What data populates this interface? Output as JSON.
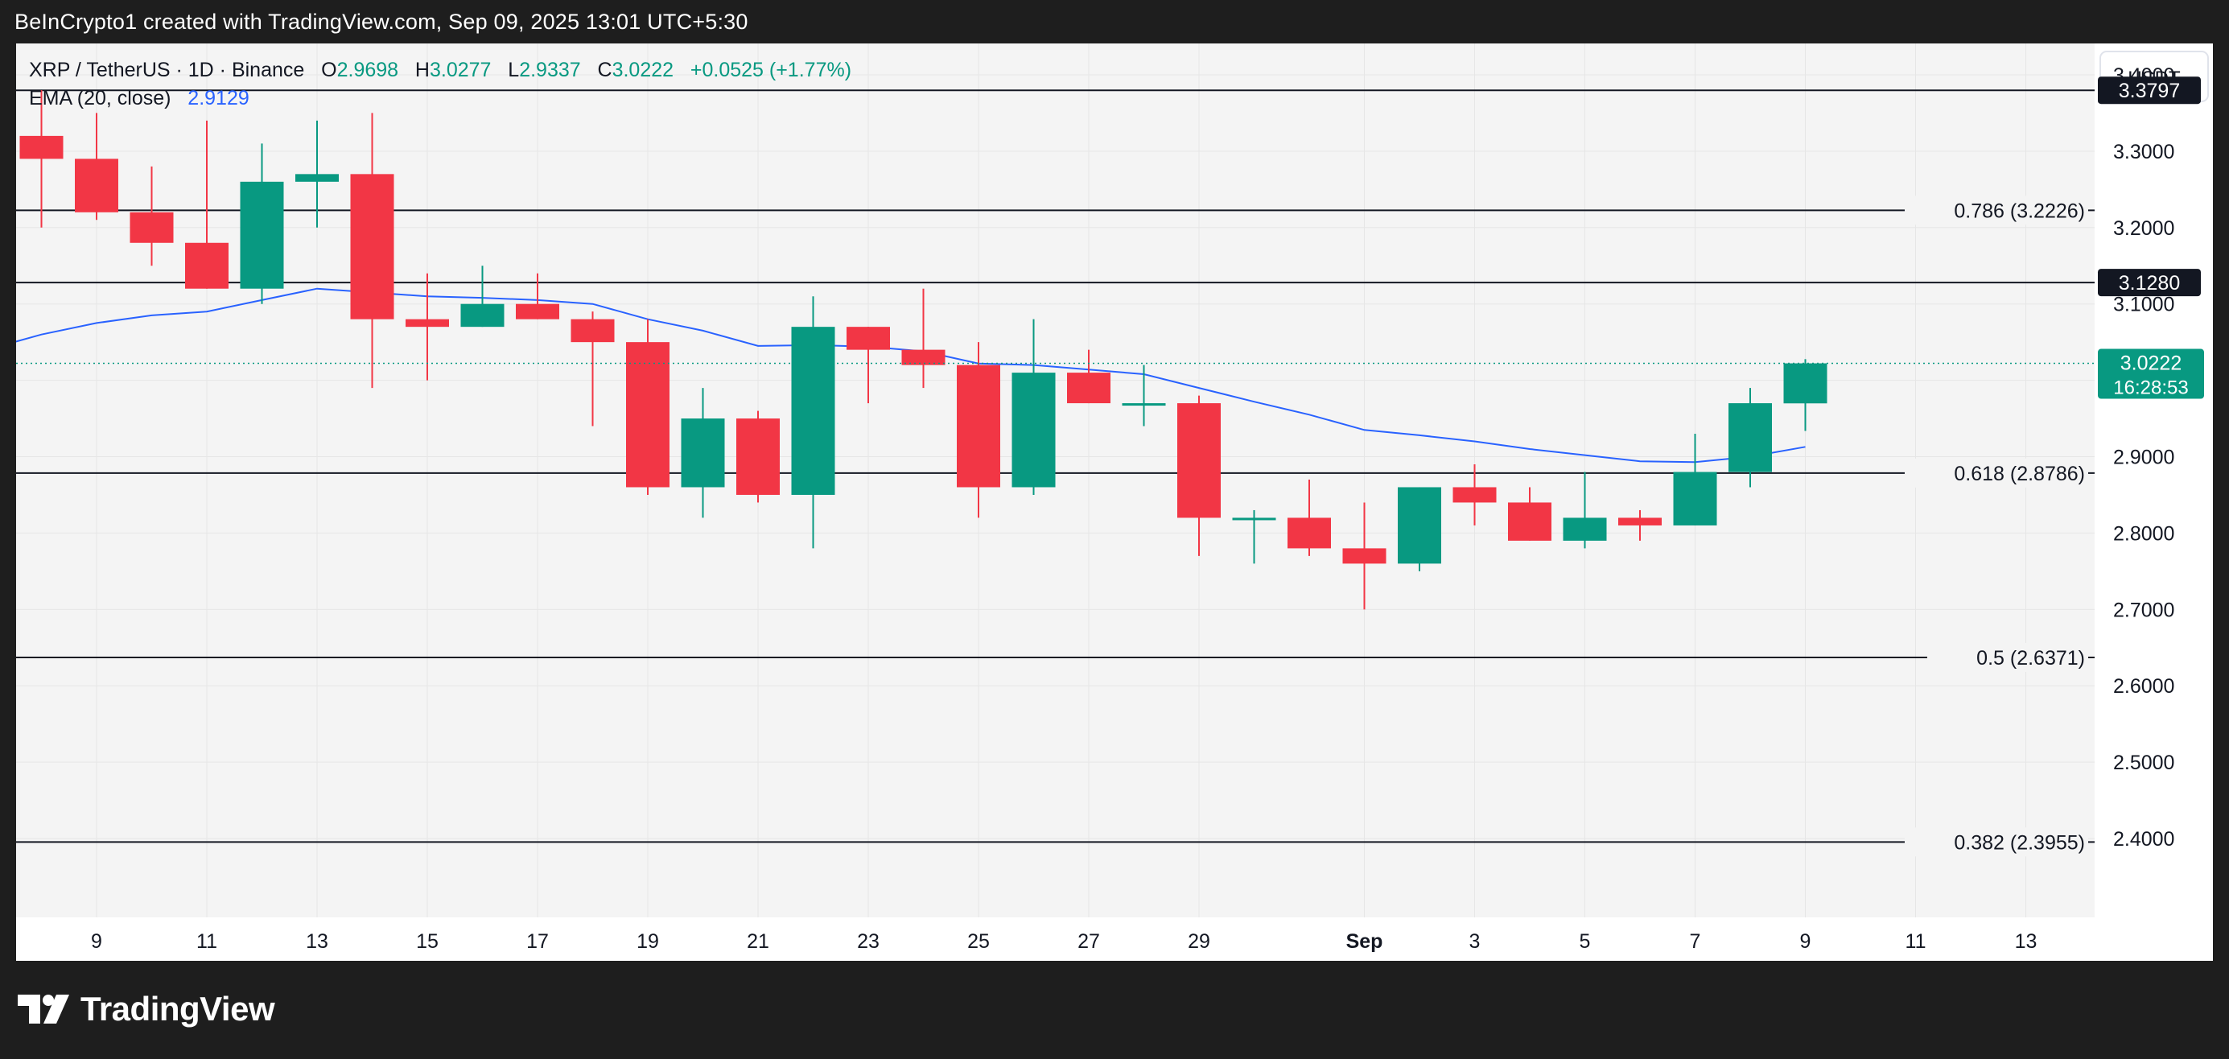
{
  "header": {
    "credit": "BeInCrypto1 created with TradingView.com, Sep 09, 2025 13:01 UTC+5:30"
  },
  "legend": {
    "symbol": "XRP / TetherUS · 1D · Binance",
    "o_label": "O",
    "o_value": "2.9698",
    "h_label": "H",
    "h_value": "3.0277",
    "l_label": "L",
    "l_value": "2.9337",
    "c_label": "C",
    "c_value": "3.0222",
    "change": "+0.0525 (+1.77%)",
    "ema_label": "EMA (20, close)",
    "ema_value": "2.9129"
  },
  "footer": {
    "logo_text": "TradingView",
    "logo_icon": "tradingview-logo-icon"
  },
  "colors": {
    "up": "#089981",
    "down": "#f23645",
    "ema": "#2962ff",
    "panel": "#f4f4f4",
    "grid": "#e6e6e6",
    "text": "#131722"
  },
  "chart_data": {
    "type": "candlestick",
    "currency_label": "USDT",
    "ylim": [
      2.34,
      3.44
    ],
    "y_ticks": [
      "2.4000",
      "2.5000",
      "2.6000",
      "2.7000",
      "2.8000",
      "2.9000",
      "3.0000",
      "3.1000",
      "3.2000",
      "3.3000",
      "3.4000"
    ],
    "x_ticks": [
      {
        "label": "9",
        "day": 9
      },
      {
        "label": "11",
        "day": 11
      },
      {
        "label": "13",
        "day": 13
      },
      {
        "label": "15",
        "day": 15
      },
      {
        "label": "17",
        "day": 17
      },
      {
        "label": "19",
        "day": 19
      },
      {
        "label": "21",
        "day": 21
      },
      {
        "label": "23",
        "day": 23
      },
      {
        "label": "25",
        "day": 25
      },
      {
        "label": "27",
        "day": 27
      },
      {
        "label": "29",
        "day": 29
      },
      {
        "label": "Sep",
        "day": 32
      },
      {
        "label": "3",
        "day": 34
      },
      {
        "label": "5",
        "day": 36
      },
      {
        "label": "7",
        "day": 38
      },
      {
        "label": "9",
        "day": 40
      },
      {
        "label": "11",
        "day": 42
      },
      {
        "label": "13",
        "day": 44
      }
    ],
    "candles": [
      {
        "day": 8,
        "o": 3.32,
        "h": 3.38,
        "l": 3.2,
        "c": 3.29
      },
      {
        "day": 9,
        "o": 3.29,
        "h": 3.35,
        "l": 3.21,
        "c": 3.22
      },
      {
        "day": 10,
        "o": 3.22,
        "h": 3.28,
        "l": 3.15,
        "c": 3.18
      },
      {
        "day": 11,
        "o": 3.18,
        "h": 3.34,
        "l": 3.12,
        "c": 3.12
      },
      {
        "day": 12,
        "o": 3.12,
        "h": 3.31,
        "l": 3.1,
        "c": 3.26
      },
      {
        "day": 13,
        "o": 3.26,
        "h": 3.34,
        "l": 3.2,
        "c": 3.27
      },
      {
        "day": 14,
        "o": 3.27,
        "h": 3.35,
        "l": 2.99,
        "c": 3.08
      },
      {
        "day": 15,
        "o": 3.08,
        "h": 3.14,
        "l": 3.0,
        "c": 3.07
      },
      {
        "day": 16,
        "o": 3.07,
        "h": 3.15,
        "l": 3.07,
        "c": 3.1
      },
      {
        "day": 17,
        "o": 3.1,
        "h": 3.14,
        "l": 3.08,
        "c": 3.08
      },
      {
        "day": 18,
        "o": 3.08,
        "h": 3.09,
        "l": 2.94,
        "c": 3.05
      },
      {
        "day": 19,
        "o": 3.05,
        "h": 3.08,
        "l": 2.85,
        "c": 2.86
      },
      {
        "day": 20,
        "o": 2.86,
        "h": 2.99,
        "l": 2.82,
        "c": 2.95
      },
      {
        "day": 21,
        "o": 2.95,
        "h": 2.96,
        "l": 2.84,
        "c": 2.85
      },
      {
        "day": 22,
        "o": 2.85,
        "h": 3.11,
        "l": 2.78,
        "c": 3.07
      },
      {
        "day": 23,
        "o": 3.07,
        "h": 3.07,
        "l": 2.97,
        "c": 3.04
      },
      {
        "day": 24,
        "o": 3.04,
        "h": 3.12,
        "l": 2.99,
        "c": 3.02
      },
      {
        "day": 25,
        "o": 3.02,
        "h": 3.05,
        "l": 2.82,
        "c": 2.86
      },
      {
        "day": 26,
        "o": 2.86,
        "h": 3.08,
        "l": 2.85,
        "c": 3.01
      },
      {
        "day": 27,
        "o": 3.01,
        "h": 3.04,
        "l": 2.97,
        "c": 2.97
      },
      {
        "day": 28,
        "o": 2.97,
        "h": 3.02,
        "l": 2.94,
        "c": 2.97
      },
      {
        "day": 29,
        "o": 2.97,
        "h": 2.98,
        "l": 2.77,
        "c": 2.82
      },
      {
        "day": 30,
        "o": 2.82,
        "h": 2.83,
        "l": 2.76,
        "c": 2.82
      },
      {
        "day": 31,
        "o": 2.82,
        "h": 2.87,
        "l": 2.77,
        "c": 2.78
      },
      {
        "day": 32,
        "o": 2.78,
        "h": 2.84,
        "l": 2.7,
        "c": 2.76
      },
      {
        "day": 33,
        "o": 2.76,
        "h": 2.86,
        "l": 2.75,
        "c": 2.86
      },
      {
        "day": 34,
        "o": 2.86,
        "h": 2.89,
        "l": 2.81,
        "c": 2.84
      },
      {
        "day": 35,
        "o": 2.84,
        "h": 2.86,
        "l": 2.79,
        "c": 2.79
      },
      {
        "day": 36,
        "o": 2.79,
        "h": 2.88,
        "l": 2.78,
        "c": 2.82
      },
      {
        "day": 37,
        "o": 2.82,
        "h": 2.83,
        "l": 2.79,
        "c": 2.81
      },
      {
        "day": 38,
        "o": 2.81,
        "h": 2.93,
        "l": 2.81,
        "c": 2.88
      },
      {
        "day": 39,
        "o": 2.88,
        "h": 2.99,
        "l": 2.86,
        "c": 2.97
      },
      {
        "day": 40,
        "o": 2.9698,
        "h": 3.0277,
        "l": 2.9337,
        "c": 3.0222
      }
    ],
    "ema": [
      {
        "day": 7.25,
        "v": 3.045
      },
      {
        "day": 8,
        "v": 3.06
      },
      {
        "day": 9,
        "v": 3.075
      },
      {
        "day": 10,
        "v": 3.085
      },
      {
        "day": 11,
        "v": 3.09
      },
      {
        "day": 12,
        "v": 3.105
      },
      {
        "day": 13,
        "v": 3.12
      },
      {
        "day": 14,
        "v": 3.115
      },
      {
        "day": 15,
        "v": 3.11
      },
      {
        "day": 16,
        "v": 3.108
      },
      {
        "day": 17,
        "v": 3.105
      },
      {
        "day": 18,
        "v": 3.1
      },
      {
        "day": 19,
        "v": 3.08
      },
      {
        "day": 20,
        "v": 3.065
      },
      {
        "day": 21,
        "v": 3.045
      },
      {
        "day": 22,
        "v": 3.046
      },
      {
        "day": 23,
        "v": 3.044
      },
      {
        "day": 24,
        "v": 3.038
      },
      {
        "day": 25,
        "v": 3.022
      },
      {
        "day": 26,
        "v": 3.02
      },
      {
        "day": 27,
        "v": 3.014
      },
      {
        "day": 28,
        "v": 3.008
      },
      {
        "day": 29,
        "v": 2.99
      },
      {
        "day": 30,
        "v": 2.972
      },
      {
        "day": 31,
        "v": 2.955
      },
      {
        "day": 32,
        "v": 2.935
      },
      {
        "day": 33,
        "v": 2.928
      },
      {
        "day": 34,
        "v": 2.92
      },
      {
        "day": 35,
        "v": 2.91
      },
      {
        "day": 36,
        "v": 2.902
      },
      {
        "day": 37,
        "v": 2.894
      },
      {
        "day": 38,
        "v": 2.893
      },
      {
        "day": 39,
        "v": 2.9
      },
      {
        "day": 40,
        "v": 2.9129
      }
    ],
    "levels": [
      {
        "value": 3.3797,
        "badge": "3.3797"
      },
      {
        "value": 3.2226,
        "label": "0.786 (3.2226)"
      },
      {
        "value": 3.128,
        "badge": "3.1280"
      },
      {
        "value": 2.8786,
        "label": "0.618 (2.8786)"
      },
      {
        "value": 2.6371,
        "label": "0.5 (2.6371)"
      },
      {
        "value": 2.3955,
        "label": "0.382 (2.3955)"
      }
    ],
    "last_price": {
      "value": 3.0222,
      "label": "3.0222",
      "countdown": "16:28:53"
    }
  }
}
